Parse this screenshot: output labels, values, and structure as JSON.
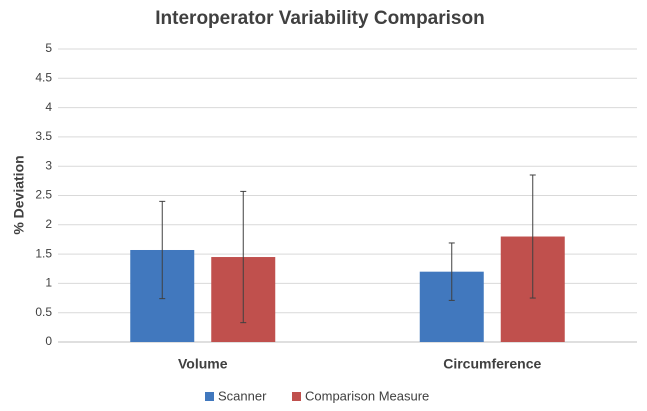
{
  "chart_data": {
    "type": "bar",
    "title": "Interoperator Variability Comparison",
    "y_label": "% Deviation",
    "categories": [
      "Volume",
      "Circumference"
    ],
    "series": [
      {
        "name": "Scanner",
        "color": "#4178be",
        "values": [
          1.57,
          1.2
        ],
        "errors": [
          0.83,
          0.49
        ]
      },
      {
        "name": "Comparison Measure",
        "color": "#c0504d",
        "values": [
          1.45,
          1.8
        ],
        "errors": [
          1.12,
          1.05
        ]
      }
    ],
    "ylim": [
      0,
      5
    ],
    "yticks": [
      0,
      0.5,
      1,
      1.5,
      2,
      2.5,
      3,
      3.5,
      4,
      4.5,
      5
    ],
    "grid": true,
    "legend": "bottom"
  }
}
